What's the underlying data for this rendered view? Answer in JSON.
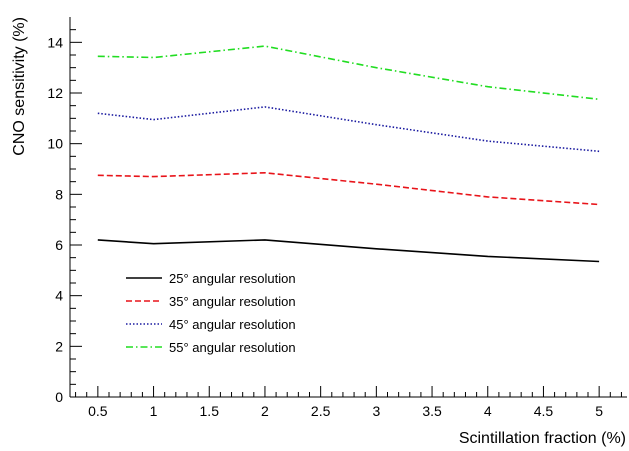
{
  "chart_data": {
    "type": "line",
    "title": "",
    "xlabel": "Scintillation fraction (%)",
    "ylabel": "CNO sensitivity (%)",
    "xlim": [
      0.25,
      5.25
    ],
    "ylim": [
      0,
      15
    ],
    "x_ticks": [
      0.5,
      1,
      1.5,
      2,
      2.5,
      3,
      3.5,
      4,
      4.5,
      5
    ],
    "x_tick_labels": [
      "0.5",
      "1",
      "1.5",
      "2",
      "2.5",
      "3",
      "3.5",
      "4",
      "4.5",
      "5"
    ],
    "y_ticks": [
      0,
      2,
      4,
      6,
      8,
      10,
      12,
      14
    ],
    "y_tick_labels": [
      "0",
      "2",
      "4",
      "6",
      "8",
      "10",
      "12",
      "14"
    ],
    "grid": false,
    "legend_position": "bottom-left",
    "x": [
      0.5,
      1,
      2,
      3,
      4,
      5
    ],
    "series": [
      {
        "name": "25° angular resolution",
        "values": [
          6.2,
          6.05,
          6.2,
          5.85,
          5.55,
          5.35
        ],
        "color": "#000000",
        "dash": "solid"
      },
      {
        "name": "35° angular resolution",
        "values": [
          8.75,
          8.7,
          8.85,
          8.4,
          7.9,
          7.6
        ],
        "color": "#e8141a",
        "dash": "dashed"
      },
      {
        "name": "45° angular resolution",
        "values": [
          11.2,
          10.95,
          11.45,
          10.75,
          10.1,
          9.7
        ],
        "color": "#1a1aa0",
        "dash": "dotted"
      },
      {
        "name": "55° angular resolution",
        "values": [
          13.45,
          13.4,
          13.85,
          13.0,
          12.25,
          11.75
        ],
        "color": "#22dd22",
        "dash": "dashdot"
      }
    ]
  }
}
